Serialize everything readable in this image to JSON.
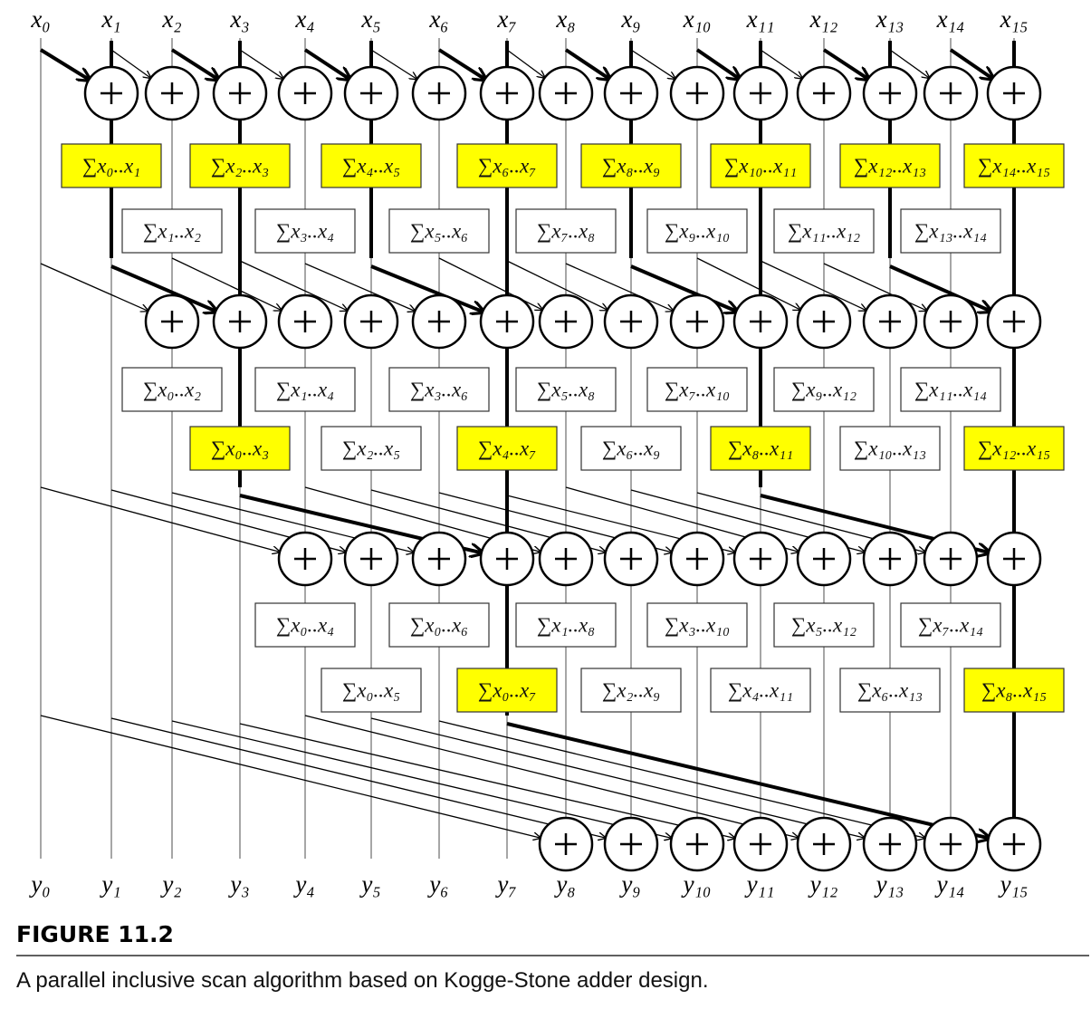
{
  "inputs": [
    "x₀",
    "x₁",
    "x₂",
    "x₃",
    "x₄",
    "x₅",
    "x₆",
    "x₇",
    "x₈",
    "x₉",
    "x₁₀",
    "x₁₁",
    "x₁₂",
    "x₁₃",
    "x₁₄",
    "x₁₅"
  ],
  "outputs": [
    "y₀",
    "y₁",
    "y₂",
    "y₃",
    "y₄",
    "y₅",
    "y₆",
    "y₇",
    "y₈",
    "y₉",
    "y₁₀",
    "y₁₁",
    "y₁₂",
    "y₁₃",
    "y₁₄",
    "y₁₅"
  ],
  "stages": [
    {
      "boxes": [
        "∑x₀..x₁",
        "∑x₁..x₂",
        "∑x₂..x₃",
        "∑x₃..x₄",
        "∑x₄..x₅",
        "∑x₅..x₆",
        "∑x₆..x₇",
        "∑x₇..x₈",
        "∑x₈..x₉",
        "∑x₉..x₁₀",
        "∑x₁₀..x₁₁",
        "∑x₁₁..x₁₂",
        "∑x₁₂..x₁₃",
        "∑x₁₃..x₁₄",
        "∑x₁₄..x₁₅"
      ]
    },
    {
      "boxes": [
        "∑x₀..x₂",
        "∑x₀..x₃",
        "∑x₁..x₄",
        "∑x₂..x₅",
        "∑x₃..x₆",
        "∑x₄..x₇",
        "∑x₅..x₈",
        "∑x₆..x₉",
        "∑x₇..x₁₀",
        "∑x₈..x₁₁",
        "∑x₉..x₁₂",
        "∑x₁₀..x₁₃",
        "∑x₁₁..x₁₄",
        "∑x₁₂..x₁₅"
      ]
    },
    {
      "boxes": [
        "∑x₀..x₄",
        "∑x₀..x₅",
        "∑x₀..x₆",
        "∑x₀..x₇",
        "∑x₁..x₈",
        "∑x₂..x₉",
        "∑x₃..x₁₀",
        "∑x₄..x₁₁",
        "∑x₅..x₁₂",
        "∑x₆..x₁₃",
        "∑x₇..x₁₄",
        "∑x₈..x₁₅"
      ]
    },
    {
      "boxes": []
    }
  ],
  "figure": {
    "label": "FIGURE 11.2",
    "caption": "A parallel inclusive scan algorithm based on Kogge-Stone adder design."
  }
}
